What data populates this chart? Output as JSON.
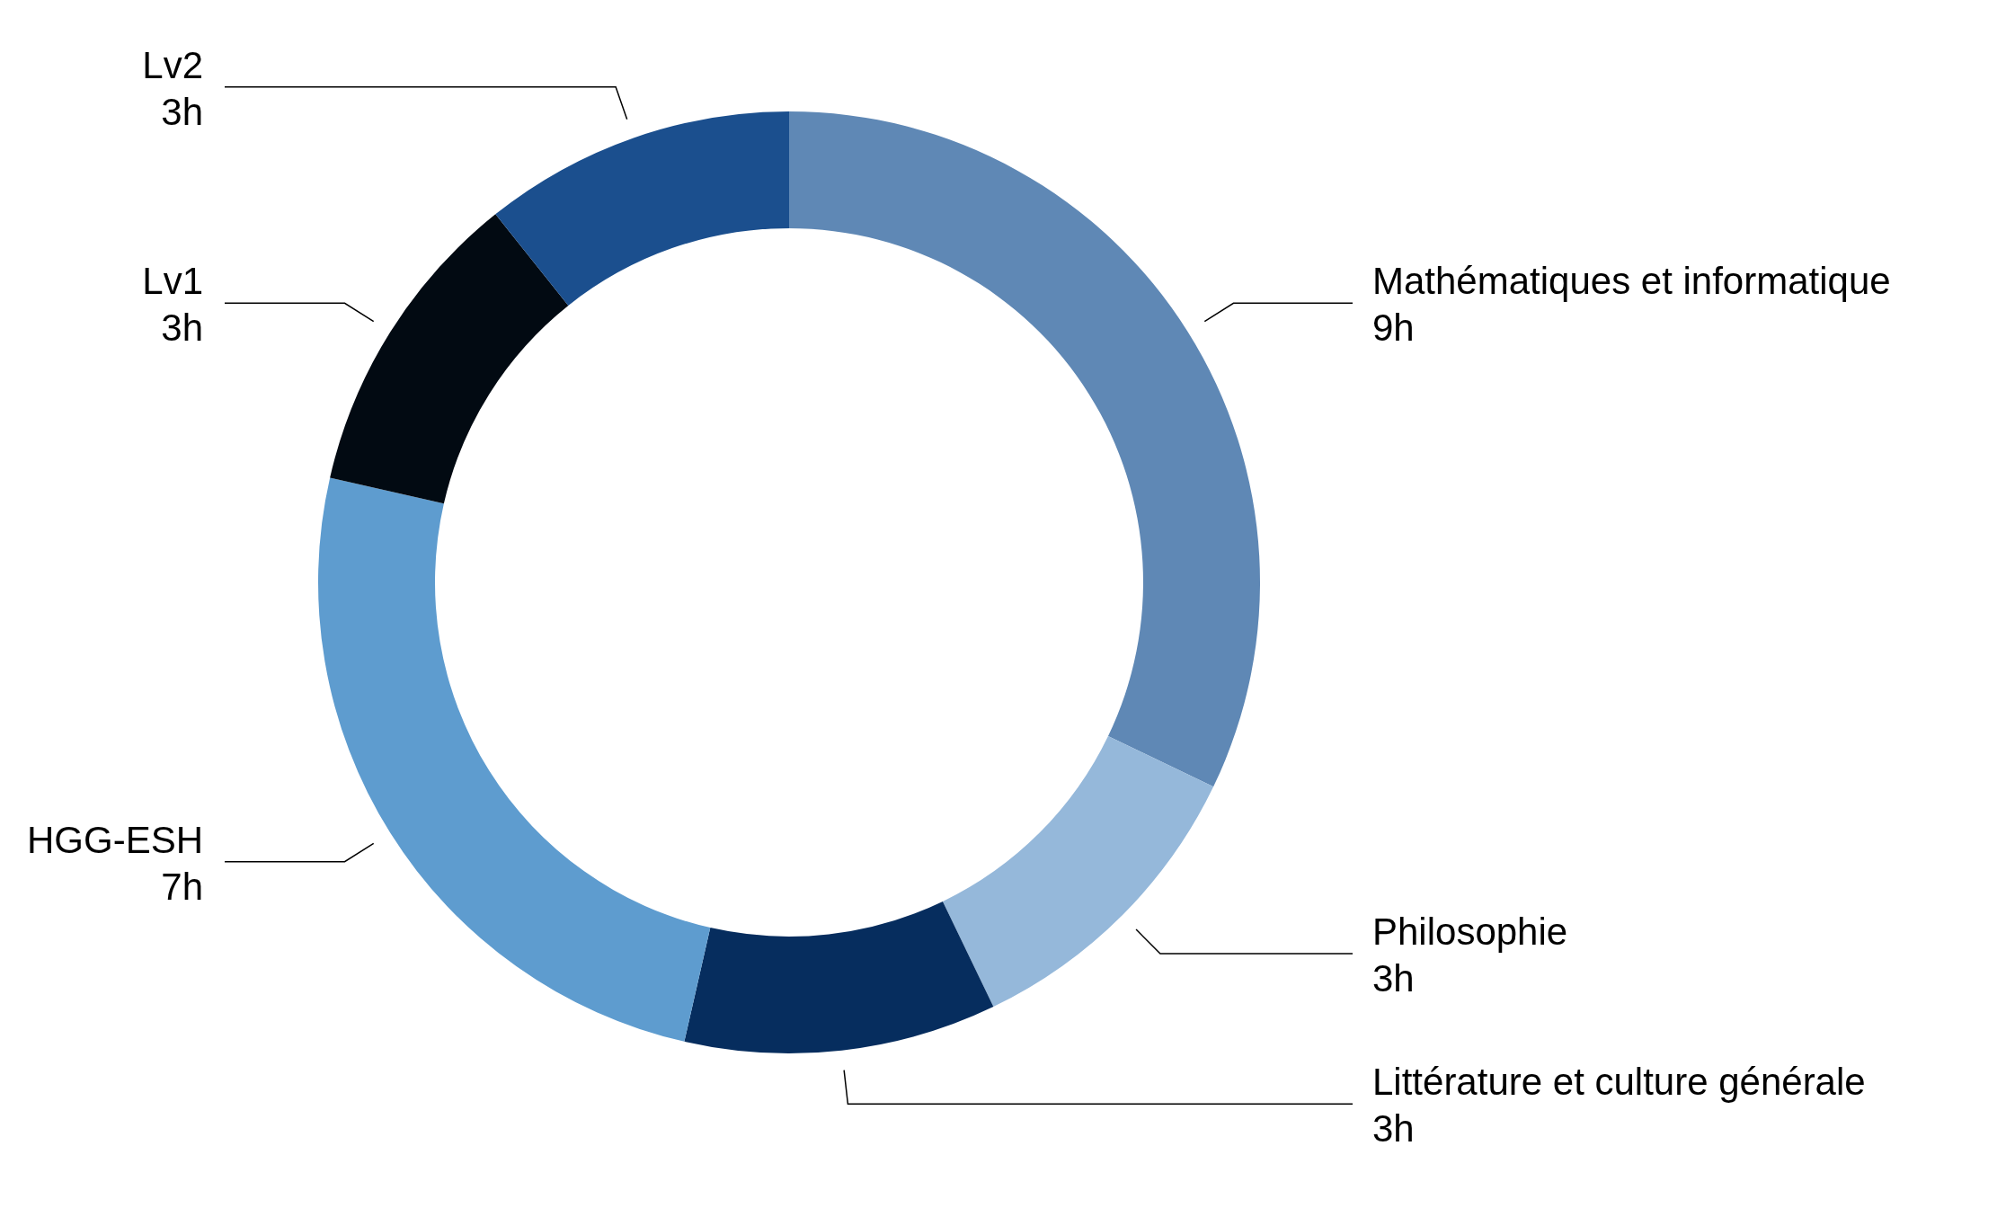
{
  "chart_data": {
    "type": "donut",
    "categories": [
      "Mathématiques et informatique",
      "Philosophie",
      "Littérature et culture générale",
      "HGG-ESH",
      "Lv1",
      "Lv2"
    ],
    "values": [
      9,
      3,
      3,
      7,
      3,
      3
    ],
    "value_labels": [
      "9h",
      "3h",
      "3h",
      "7h",
      "3h",
      "3h"
    ],
    "colors": [
      "#5f88b5",
      "#95b8da",
      "#062d5e",
      "#5e9ccf",
      "#020a12",
      "#1b4f8e"
    ]
  }
}
